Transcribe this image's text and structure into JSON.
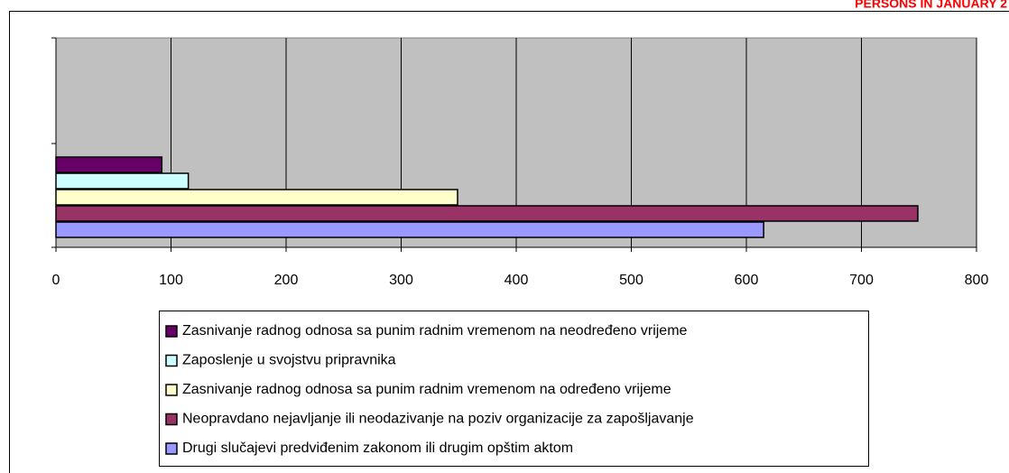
{
  "chart_data": {
    "type": "bar",
    "orientation": "horizontal",
    "title": "PERSONS IN JANUARY 2",
    "categories": [
      null
    ],
    "series": [
      {
        "name": "Zasnivanje radnog odnosa sa punim radnim vremenom na neodređeno vrijeme",
        "color": "#660066",
        "values": [
          92
        ]
      },
      {
        "name": "Zaposlenje u svojstvu pripravnika",
        "color": "#ccffff",
        "values": [
          115
        ]
      },
      {
        "name": "Zasnivanje radnog odnosa sa punim radnim vremenom na određeno vrijeme",
        "color": "#ffffcc",
        "values": [
          349
        ]
      },
      {
        "name": "Neopravdano nejavljanje ili neodazivanje na poziv organizacije za zapošljavanje",
        "color": "#993366",
        "values": [
          749
        ]
      },
      {
        "name": "Drugi slučajevi predviđenim zakonom ili drugim opštim aktom",
        "color": "#9999ff",
        "values": [
          615
        ]
      }
    ],
    "xlim": [
      0,
      800
    ],
    "xticks": [
      0,
      100,
      200,
      300,
      400,
      500,
      600,
      700,
      800
    ],
    "grid": true,
    "legend": "bottom"
  }
}
